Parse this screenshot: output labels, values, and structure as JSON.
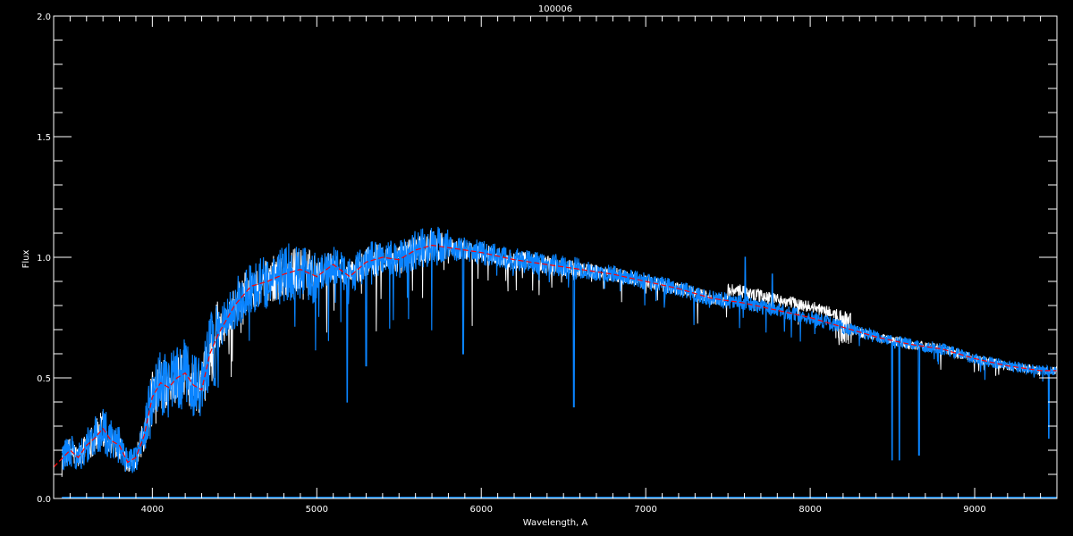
{
  "chart_data": {
    "type": "line",
    "title": "100006",
    "xlabel": "Wavelength, A",
    "ylabel": "Flux",
    "xlim": [
      3400,
      9500
    ],
    "ylim": [
      0.0,
      2.0
    ],
    "x_ticks": [
      "4000",
      "5000",
      "6000",
      "7000",
      "8000",
      "9000"
    ],
    "x_tick_values": [
      4000,
      5000,
      6000,
      7000,
      8000,
      9000
    ],
    "x_minor_step": 100,
    "y_ticks": [
      "0.0",
      "0.5",
      "1.0",
      "1.5",
      "2.0"
    ],
    "y_tick_values": [
      0.0,
      0.5,
      1.0,
      1.5,
      2.0
    ],
    "y_minor_step": 0.1,
    "grid": false,
    "background": "#000000",
    "axis_color": "#ffffff",
    "series": [
      {
        "color": "#ff0000",
        "style": "smoothed",
        "x": [
          3400,
          3500,
          3550,
          3600,
          3650,
          3700,
          3750,
          3800,
          3850,
          3900,
          3950,
          4000,
          4050,
          4100,
          4150,
          4200,
          4250,
          4300,
          4350,
          4400,
          4500,
          4600,
          4700,
          4800,
          4900,
          5000,
          5100,
          5200,
          5300,
          5400,
          5500,
          5600,
          5700,
          5800,
          5900,
          6000,
          6200,
          6400,
          6600,
          6800,
          7000,
          7200,
          7400,
          7600,
          7800,
          8000,
          8200,
          8400,
          8600,
          8800,
          9000,
          9200,
          9400,
          9500
        ],
        "y": [
          0.13,
          0.2,
          0.17,
          0.22,
          0.25,
          0.29,
          0.24,
          0.22,
          0.15,
          0.17,
          0.26,
          0.42,
          0.48,
          0.46,
          0.5,
          0.52,
          0.47,
          0.45,
          0.6,
          0.68,
          0.8,
          0.88,
          0.9,
          0.93,
          0.95,
          0.92,
          0.97,
          0.92,
          0.98,
          1.0,
          0.99,
          1.03,
          1.05,
          1.04,
          1.03,
          1.02,
          0.99,
          0.97,
          0.95,
          0.93,
          0.9,
          0.87,
          0.83,
          0.81,
          0.78,
          0.75,
          0.71,
          0.67,
          0.64,
          0.62,
          0.58,
          0.55,
          0.53,
          0.53
        ]
      },
      {
        "color": "#ffffff",
        "style": "observed"
      },
      {
        "color": "#0a84ff",
        "style": "observed",
        "absorption_lines": [
          {
            "x": 5185,
            "y": 0.4
          },
          {
            "x": 5300,
            "y": 0.55
          },
          {
            "x": 5890,
            "y": 0.6
          },
          {
            "x": 6563,
            "y": 0.38
          },
          {
            "x": 8498,
            "y": 0.16
          },
          {
            "x": 8542,
            "y": 0.16
          },
          {
            "x": 8662,
            "y": 0.18
          },
          {
            "x": 9450,
            "y": 0.25
          }
        ],
        "emission_lines": [
          {
            "x": 7605,
            "y": 1.0
          },
          {
            "x": 7770,
            "y": 0.93
          }
        ]
      }
    ]
  }
}
